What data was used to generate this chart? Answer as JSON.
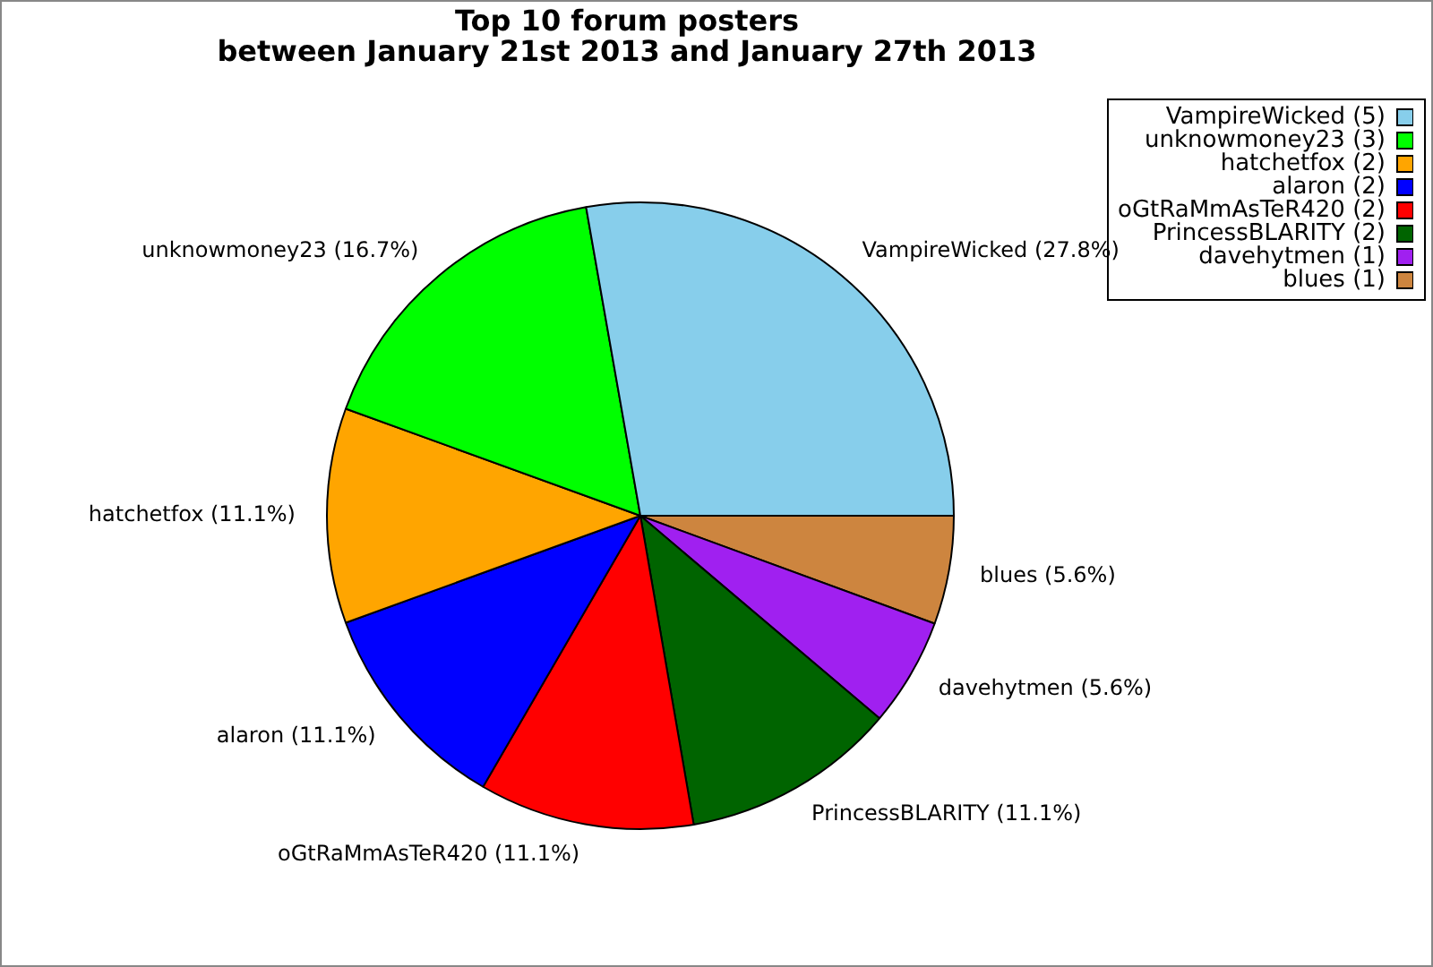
{
  "chart_data": {
    "type": "pie",
    "title": "Top 10 forum posters",
    "subtitle": "between January 21st 2013 and January 27th 2013",
    "categories": [
      "VampireWicked (5)",
      "unknowmoney23 (3)",
      "hatchetfox (2)",
      "alaron (2)",
      "oGtRaMmAsTeR420 (2)",
      "PrincessBLARITY (2)",
      "davehytmen (1)",
      "blues (1)"
    ],
    "values": [
      27.8,
      16.7,
      11.1,
      11.1,
      11.1,
      11.1,
      5.6,
      5.6
    ],
    "value_labels": [
      "VampireWicked (27.8%)",
      "unknowmoney23 (16.7%)",
      "hatchetfox (11.1%)",
      "alaron (11.1%)",
      "oGtRaMmAsTeR420 (11.1%)",
      "PrincessBLARITY (11.1%)",
      "davehytmen (5.6%)",
      "blues (5.6%)"
    ],
    "colors": [
      "#87ceeb",
      "#00ff00",
      "#ffa500",
      "#0000ff",
      "#ff0000",
      "#006400",
      "#a020f0",
      "#cd853f"
    ],
    "legend": "top right"
  }
}
